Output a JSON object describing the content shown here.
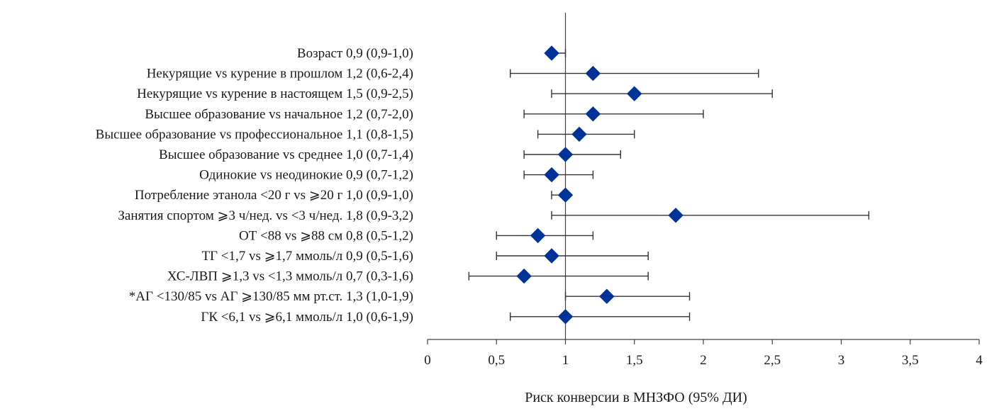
{
  "chart_data": {
    "type": "forest",
    "xlabel": "Риск конверсии в МНЗФО (95% ДИ)",
    "xlim": [
      0,
      4
    ],
    "xticks": [
      0,
      0.5,
      1,
      1.5,
      2,
      2.5,
      3,
      3.5,
      4
    ],
    "xtick_labels": [
      "0",
      "0,5",
      "1",
      "1,5",
      "2",
      "2,5",
      "3",
      "3,5",
      "4"
    ],
    "reference_line": 1,
    "marker": "diamond",
    "colors": {
      "marker": "#003399",
      "errorbar": "#333333",
      "axis": "#404040"
    },
    "rows": [
      {
        "label": "Возраст 0,9 (0,9-1,0)",
        "value": 0.9,
        "lower": 0.9,
        "upper": 1.0
      },
      {
        "label": "Некурящие vs курение в прошлом 1,2 (0,6-2,4)",
        "value": 1.2,
        "lower": 0.6,
        "upper": 2.4
      },
      {
        "label": "Некурящие vs курение в настоящем 1,5 (0,9-2,5)",
        "value": 1.5,
        "lower": 0.9,
        "upper": 2.5
      },
      {
        "label": "Высшее образование vs начальное 1,2 (0,7-2,0)",
        "value": 1.2,
        "lower": 0.7,
        "upper": 2.0
      },
      {
        "label": "Высшее образование vs профессиональное 1,1 (0,8-1,5)",
        "value": 1.1,
        "lower": 0.8,
        "upper": 1.5
      },
      {
        "label": "Высшее образование vs среднее 1,0 (0,7-1,4)",
        "value": 1.0,
        "lower": 0.7,
        "upper": 1.4
      },
      {
        "label": "Одинокие vs неодинокие 0,9 (0,7-1,2)",
        "value": 0.9,
        "lower": 0.7,
        "upper": 1.2
      },
      {
        "label": "Потребление этанола <20 г vs ⩾20 г 1,0 (0,9-1,0)",
        "value": 1.0,
        "lower": 0.9,
        "upper": 1.0
      },
      {
        "label": "Занятия спортом ⩾3 ч/нед. vs <3 ч/нед. 1,8 (0,9-3,2)",
        "value": 1.8,
        "lower": 0.9,
        "upper": 3.2
      },
      {
        "label": "ОТ <88 vs ⩾88 см 0,8 (0,5-1,2)",
        "value": 0.8,
        "lower": 0.5,
        "upper": 1.2
      },
      {
        "label": "ТГ <1,7 vs ⩾1,7 ммоль/л 0,9 (0,5-1,6)",
        "value": 0.9,
        "lower": 0.5,
        "upper": 1.6
      },
      {
        "label": "ХС-ЛВП ⩾1,3 vs <1,3 ммоль/л 0,7 (0,3-1,6)",
        "value": 0.7,
        "lower": 0.3,
        "upper": 1.6
      },
      {
        "label": "*АГ <130/85 vs АГ ⩾130/85 мм рт.ст. 1,3 (1,0-1,9)",
        "value": 1.3,
        "lower": 1.0,
        "upper": 1.9
      },
      {
        "label": "ГК <6,1 vs ⩾6,1 ммоль/л 1,0 (0,6-1,9)",
        "value": 1.0,
        "lower": 0.6,
        "upper": 1.9
      }
    ]
  }
}
